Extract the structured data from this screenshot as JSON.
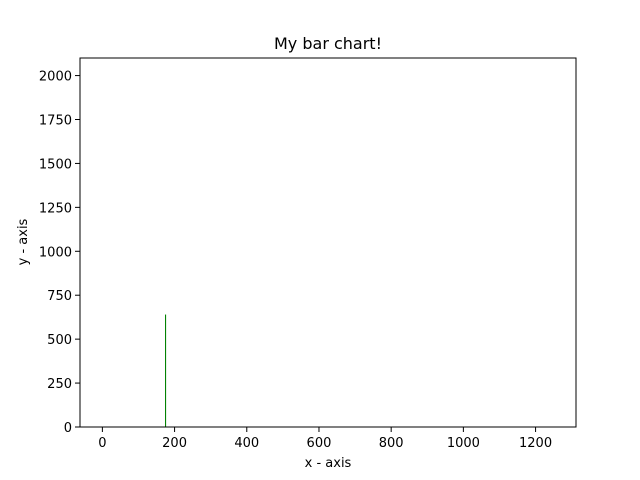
{
  "chart_data": {
    "type": "bar",
    "title": "My bar chart!",
    "xlabel": "x - axis",
    "ylabel": "y - axis",
    "xlim": [
      -62,
      1312
    ],
    "ylim": [
      0,
      2100
    ],
    "xticks": [
      0,
      200,
      400,
      600,
      800,
      1000,
      1200
    ],
    "yticks": [
      0,
      250,
      500,
      750,
      1000,
      1250,
      1500,
      1750,
      2000
    ],
    "grid": false,
    "bar_color": "#008000",
    "bars": [
      {
        "x": 175,
        "width": 3,
        "value": 640
      }
    ]
  }
}
